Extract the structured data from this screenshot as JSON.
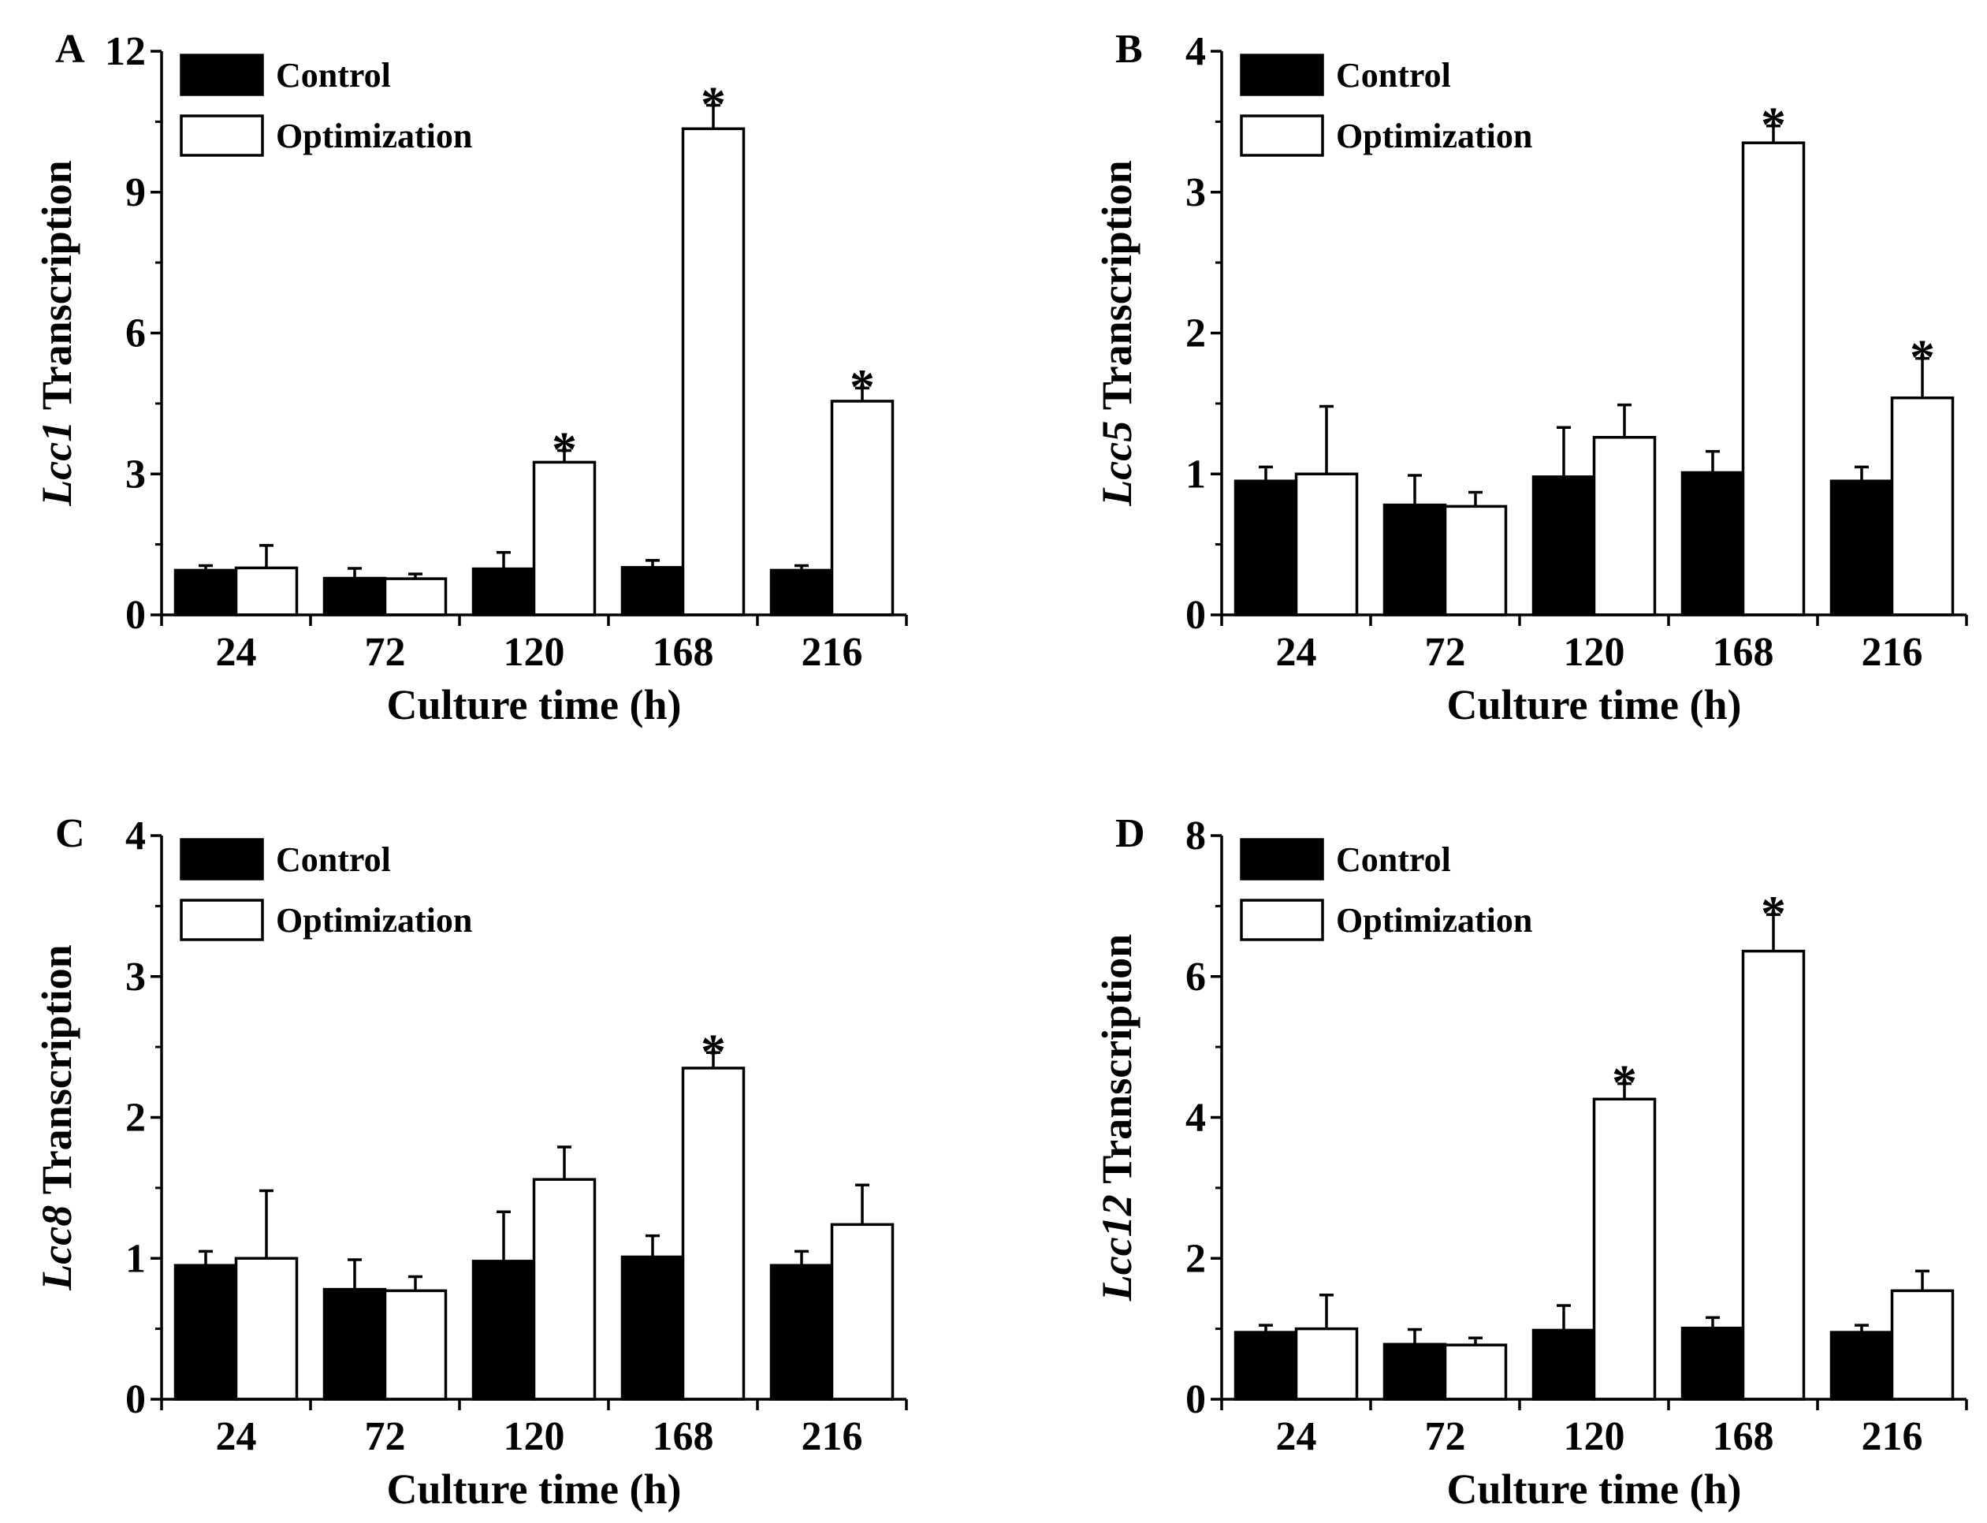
{
  "figure": {
    "panel_count": 4,
    "colors": {
      "control": "#000000",
      "optimization": "#ffffff",
      "axis": "#000000"
    }
  },
  "legend": {
    "control": "Control",
    "optimization": "Optimization"
  },
  "chart_data": [
    {
      "panel": "A",
      "type": "bar",
      "title": "",
      "xlabel": "Culture time (h)",
      "ylabel_italic": "Lcc1",
      "ylabel_suffix": " Transcription",
      "categories": [
        "24",
        "72",
        "120",
        "168",
        "216"
      ],
      "ylim": [
        0,
        12
      ],
      "yticks": [
        "0",
        "3",
        "6",
        "9",
        "12"
      ],
      "legend_position": "top-left",
      "series": [
        {
          "name": "Control",
          "values": [
            0.95,
            0.78,
            0.98,
            1.01,
            0.95
          ],
          "errors": [
            0.1,
            0.21,
            0.35,
            0.15,
            0.1
          ]
        },
        {
          "name": "Optimization",
          "values": [
            1.0,
            0.77,
            3.25,
            10.35,
            4.55
          ],
          "errors": [
            0.48,
            0.1,
            0.25,
            0.5,
            0.28
          ]
        }
      ],
      "significance": [
        "",
        "",
        "*",
        "*",
        "*"
      ]
    },
    {
      "panel": "B",
      "type": "bar",
      "title": "",
      "xlabel": "Culture time (h)",
      "ylabel_italic": "Lcc5",
      "ylabel_suffix": " Transcription",
      "categories": [
        "24",
        "72",
        "120",
        "168",
        "216"
      ],
      "ylim": [
        0,
        4
      ],
      "yticks": [
        "0",
        "1",
        "2",
        "3",
        "4"
      ],
      "legend_position": "top-left",
      "series": [
        {
          "name": "Control",
          "values": [
            0.95,
            0.78,
            0.98,
            1.01,
            0.95
          ],
          "errors": [
            0.1,
            0.21,
            0.35,
            0.15,
            0.1
          ]
        },
        {
          "name": "Optimization",
          "values": [
            1.0,
            0.77,
            1.26,
            3.35,
            1.54
          ],
          "errors": [
            0.48,
            0.1,
            0.23,
            0.12,
            0.28
          ]
        }
      ],
      "significance": [
        "",
        "",
        "",
        "*",
        "*"
      ]
    },
    {
      "panel": "C",
      "type": "bar",
      "title": "",
      "xlabel": "Culture time (h)",
      "ylabel_italic": "Lcc8",
      "ylabel_suffix": " Transcription",
      "categories": [
        "24",
        "72",
        "120",
        "168",
        "216"
      ],
      "ylim": [
        0,
        4
      ],
      "yticks": [
        "0",
        "1",
        "2",
        "3",
        "4"
      ],
      "legend_position": "top-left",
      "series": [
        {
          "name": "Control",
          "values": [
            0.95,
            0.78,
            0.98,
            1.01,
            0.95
          ],
          "errors": [
            0.1,
            0.21,
            0.35,
            0.15,
            0.1
          ]
        },
        {
          "name": "Optimization",
          "values": [
            1.0,
            0.77,
            1.56,
            2.35,
            1.24
          ],
          "errors": [
            0.48,
            0.1,
            0.23,
            0.11,
            0.28
          ]
        }
      ],
      "significance": [
        "",
        "",
        "",
        "*",
        ""
      ]
    },
    {
      "panel": "D",
      "type": "bar",
      "title": "",
      "xlabel": "Culture time (h)",
      "ylabel_italic": "Lcc12",
      "ylabel_suffix": " Transcription",
      "categories": [
        "24",
        "72",
        "120",
        "168",
        "216"
      ],
      "ylim": [
        0,
        8
      ],
      "yticks": [
        "0",
        "2",
        "4",
        "6",
        "8"
      ],
      "legend_position": "top-left",
      "series": [
        {
          "name": "Control",
          "values": [
            0.95,
            0.78,
            0.98,
            1.01,
            0.95
          ],
          "errors": [
            0.1,
            0.21,
            0.35,
            0.15,
            0.1
          ]
        },
        {
          "name": "Optimization",
          "values": [
            1.0,
            0.77,
            4.26,
            6.36,
            1.54
          ],
          "errors": [
            0.48,
            0.1,
            0.22,
            0.52,
            0.28
          ]
        }
      ],
      "significance": [
        "",
        "",
        "*",
        "*",
        ""
      ]
    }
  ]
}
